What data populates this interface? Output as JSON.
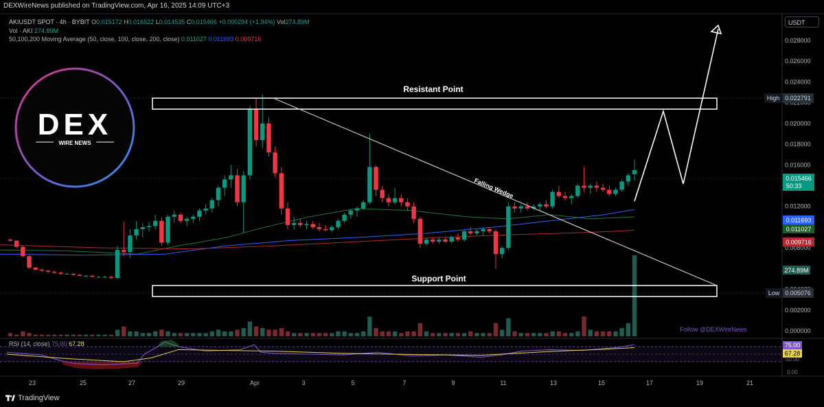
{
  "header": {
    "publisher": "DEXWireNews published on TradingView.com, Apr 16, 2025 14:09 UTC+3"
  },
  "legend": {
    "symbol": "AKIUSDT SPOT · 4h · BYBIT",
    "o_label": "O",
    "o": "0.015172",
    "h_label": "H",
    "h": "0.016522",
    "l_label": "L",
    "l": "0.014535",
    "c_label": "C",
    "c": "0.015466",
    "change": "+0.000294 (+1.94%)",
    "vol_label": "Vol",
    "vol": "274.89M",
    "vol_line_label": "Vol · AKI",
    "vol_line_value": "274.89M",
    "ma_label": "50,100,200 Moving Average (50, close, 100, close, 200, close)",
    "ma50": "0.011027",
    "ma100": "0.011693",
    "ma200": "0.009716"
  },
  "currency_button": "USDT",
  "logo": {
    "text": "DEX",
    "subtitle": "WIRE NEWS"
  },
  "annotations": {
    "resistant": "Resistant Point",
    "support": "Support Point",
    "wedge": "Falling Wedge",
    "follow": "Follow @DEXWireNews"
  },
  "price_tags": {
    "high_label": "High",
    "high": "0.022791",
    "last": "0.015466",
    "countdown": "50:33",
    "ma100": "0.011693",
    "ma50": "0.011027",
    "ma200": "0.009716",
    "volume": "274.89M",
    "low_label": "Low",
    "low": "0.005076"
  },
  "rsi": {
    "label": "RSI (14, close)",
    "rsi_value": "75.00",
    "ma_value": "67.28",
    "tag_rsi": "75.00",
    "tag_ma": "67.28",
    "tag_50": "50.00",
    "tag_0": "0.00"
  },
  "footer": {
    "brand": "TradingView"
  },
  "colors": {
    "up": "#089981",
    "down": "#f23645",
    "ma50": "#1f7a3a",
    "ma100": "#2962ff",
    "ma200": "#b22833",
    "rsi": "#7e57c2",
    "rsi_ma": "#e8d44d",
    "vol_up": "#1f5c52",
    "vol_down": "#7a2a2e"
  },
  "chart_data": {
    "type": "candlestick",
    "symbol": "AKIUSDT",
    "timeframe": "4h",
    "y_ticks": [
      "0.028000",
      "0.026000",
      "0.024000",
      "0.022000",
      "0.020000",
      "0.018000",
      "0.016000",
      "0.014000",
      "0.012000",
      "0.010000",
      "0.008000",
      "0.006000",
      "0.004000",
      "0.002000",
      "0.000000"
    ],
    "x_ticks": [
      "23",
      "25",
      "27",
      "29",
      "Apr",
      "3",
      "5",
      "7",
      "9",
      "11",
      "13",
      "15",
      "17",
      "19",
      "21"
    ],
    "ylim": [
      0.0,
      0.0295
    ],
    "candles": [
      [
        0.0088,
        0.0089,
        0.0086,
        0.0087
      ],
      [
        0.0087,
        0.0087,
        0.008,
        0.0081
      ],
      [
        0.0081,
        0.0082,
        0.0071,
        0.0072
      ],
      [
        0.0072,
        0.0073,
        0.006,
        0.0061
      ],
      [
        0.0061,
        0.0062,
        0.0058,
        0.0059
      ],
      [
        0.0059,
        0.006,
        0.0057,
        0.0058
      ],
      [
        0.0058,
        0.0059,
        0.0056,
        0.0057
      ],
      [
        0.0057,
        0.0058,
        0.0055,
        0.0056
      ],
      [
        0.0056,
        0.0057,
        0.0054,
        0.0055
      ],
      [
        0.0055,
        0.0056,
        0.0054,
        0.0055
      ],
      [
        0.0055,
        0.0056,
        0.0053,
        0.0054
      ],
      [
        0.0054,
        0.0055,
        0.0053,
        0.0053
      ],
      [
        0.0053,
        0.0054,
        0.0052,
        0.0053
      ],
      [
        0.0053,
        0.0054,
        0.0052,
        0.0052
      ],
      [
        0.0052,
        0.0053,
        0.0051,
        0.0052
      ],
      [
        0.0052,
        0.0053,
        0.0051,
        0.0052
      ],
      [
        0.0052,
        0.0053,
        0.005,
        0.0051
      ],
      [
        0.0051,
        0.0082,
        0.005,
        0.0078
      ],
      [
        0.0078,
        0.0105,
        0.0072,
        0.0076
      ],
      [
        0.0076,
        0.0098,
        0.007,
        0.0092
      ],
      [
        0.0092,
        0.0106,
        0.0088,
        0.0098
      ],
      [
        0.0098,
        0.0104,
        0.009,
        0.01
      ],
      [
        0.01,
        0.0105,
        0.0096,
        0.0101
      ],
      [
        0.0101,
        0.0112,
        0.0098,
        0.0106
      ],
      [
        0.0106,
        0.011,
        0.0082,
        0.0085
      ],
      [
        0.0085,
        0.0112,
        0.0083,
        0.011
      ],
      [
        0.011,
        0.0116,
        0.0104,
        0.0112
      ],
      [
        0.0112,
        0.0114,
        0.0104,
        0.0106
      ],
      [
        0.0106,
        0.011,
        0.0101,
        0.0108
      ],
      [
        0.0108,
        0.0112,
        0.0104,
        0.011
      ],
      [
        0.011,
        0.0118,
        0.0106,
        0.0116
      ],
      [
        0.0116,
        0.0122,
        0.0112,
        0.0118
      ],
      [
        0.0118,
        0.0128,
        0.0114,
        0.0126
      ],
      [
        0.0126,
        0.014,
        0.012,
        0.0138
      ],
      [
        0.0138,
        0.015,
        0.013,
        0.0146
      ],
      [
        0.0146,
        0.016,
        0.0138,
        0.015
      ],
      [
        0.015,
        0.0156,
        0.012,
        0.0124
      ],
      [
        0.0124,
        0.0154,
        0.0094,
        0.015
      ],
      [
        0.015,
        0.0217,
        0.0146,
        0.0214
      ],
      [
        0.0214,
        0.0224,
        0.0178,
        0.0184
      ],
      [
        0.0184,
        0.0228,
        0.0176,
        0.02
      ],
      [
        0.02,
        0.0206,
        0.0168,
        0.0172
      ],
      [
        0.0172,
        0.0178,
        0.0148,
        0.0152
      ],
      [
        0.0152,
        0.0158,
        0.0112,
        0.0118
      ],
      [
        0.0118,
        0.0124,
        0.0098,
        0.0102
      ],
      [
        0.0102,
        0.011,
        0.0098,
        0.0104
      ],
      [
        0.0104,
        0.0108,
        0.01,
        0.0102
      ],
      [
        0.0102,
        0.0106,
        0.0098,
        0.0103
      ],
      [
        0.0103,
        0.0106,
        0.0098,
        0.01
      ],
      [
        0.01,
        0.0104,
        0.0096,
        0.0098
      ],
      [
        0.0098,
        0.0102,
        0.0096,
        0.0097
      ],
      [
        0.0097,
        0.0102,
        0.0095,
        0.01
      ],
      [
        0.01,
        0.0108,
        0.0098,
        0.0106
      ],
      [
        0.0106,
        0.0114,
        0.0104,
        0.0112
      ],
      [
        0.0112,
        0.0118,
        0.0108,
        0.0116
      ],
      [
        0.0116,
        0.012,
        0.011,
        0.0118
      ],
      [
        0.0118,
        0.0126,
        0.0116,
        0.0124
      ],
      [
        0.0124,
        0.019,
        0.0122,
        0.0158
      ],
      [
        0.0158,
        0.016,
        0.013,
        0.0136
      ],
      [
        0.0136,
        0.014,
        0.0124,
        0.0128
      ],
      [
        0.0128,
        0.0132,
        0.012,
        0.0124
      ],
      [
        0.0124,
        0.0138,
        0.0122,
        0.0128
      ],
      [
        0.0128,
        0.0132,
        0.012,
        0.0124
      ],
      [
        0.0124,
        0.0128,
        0.0116,
        0.012
      ],
      [
        0.012,
        0.0124,
        0.0104,
        0.0108
      ],
      [
        0.0108,
        0.011,
        0.008,
        0.0084
      ],
      [
        0.0084,
        0.009,
        0.0082,
        0.0088
      ],
      [
        0.0088,
        0.009,
        0.0084,
        0.0086
      ],
      [
        0.0086,
        0.009,
        0.0084,
        0.0088
      ],
      [
        0.0088,
        0.009,
        0.0085,
        0.0086
      ],
      [
        0.0086,
        0.0092,
        0.0084,
        0.009
      ],
      [
        0.009,
        0.0094,
        0.0086,
        0.0088
      ],
      [
        0.0088,
        0.0098,
        0.0086,
        0.0096
      ],
      [
        0.0096,
        0.01,
        0.0092,
        0.0094
      ],
      [
        0.0094,
        0.0098,
        0.0092,
        0.0096
      ],
      [
        0.0096,
        0.01,
        0.0092,
        0.0098
      ],
      [
        0.0098,
        0.01,
        0.0094,
        0.0096
      ],
      [
        0.0096,
        0.0098,
        0.006,
        0.0074
      ],
      [
        0.0074,
        0.0082,
        0.007,
        0.008
      ],
      [
        0.008,
        0.0124,
        0.0078,
        0.012
      ],
      [
        0.012,
        0.0124,
        0.0114,
        0.0118
      ],
      [
        0.0118,
        0.0122,
        0.0114,
        0.012
      ],
      [
        0.012,
        0.0124,
        0.0116,
        0.0118
      ],
      [
        0.0118,
        0.0122,
        0.0116,
        0.012
      ],
      [
        0.012,
        0.0124,
        0.0116,
        0.0122
      ],
      [
        0.0122,
        0.0126,
        0.0118,
        0.012
      ],
      [
        0.012,
        0.0136,
        0.0118,
        0.0134
      ],
      [
        0.0134,
        0.014,
        0.0128,
        0.013
      ],
      [
        0.013,
        0.0134,
        0.0126,
        0.0128
      ],
      [
        0.0128,
        0.0132,
        0.0122,
        0.013
      ],
      [
        0.013,
        0.0142,
        0.0128,
        0.014
      ],
      [
        0.014,
        0.0158,
        0.0134,
        0.0138
      ],
      [
        0.0138,
        0.0142,
        0.0132,
        0.014
      ],
      [
        0.014,
        0.0144,
        0.0134,
        0.0138
      ],
      [
        0.0138,
        0.0142,
        0.0134,
        0.0136
      ],
      [
        0.0136,
        0.014,
        0.013,
        0.0132
      ],
      [
        0.0132,
        0.0138,
        0.013,
        0.0136
      ],
      [
        0.0136,
        0.0146,
        0.0134,
        0.0144
      ],
      [
        0.0144,
        0.0152,
        0.014,
        0.015
      ],
      [
        0.0151,
        0.0165,
        0.0145,
        0.0155
      ]
    ],
    "volumes_M": [
      2,
      1,
      3,
      2,
      1,
      1,
      1,
      1,
      1,
      1,
      1,
      1,
      1,
      1,
      1,
      1,
      1,
      4,
      6,
      3,
      3,
      2,
      2,
      3,
      4,
      3,
      2,
      2,
      2,
      2,
      2,
      2,
      3,
      4,
      3,
      3,
      4,
      5,
      9,
      6,
      5,
      4,
      4,
      5,
      3,
      2,
      2,
      2,
      2,
      2,
      2,
      2,
      3,
      3,
      2,
      2,
      3,
      12,
      5,
      3,
      3,
      3,
      2,
      3,
      3,
      8,
      3,
      2,
      2,
      2,
      2,
      2,
      2,
      3,
      2,
      2,
      2,
      8,
      4,
      11,
      3,
      2,
      2,
      2,
      2,
      2,
      3,
      3,
      2,
      2,
      3,
      12,
      4,
      3,
      3,
      3,
      3,
      5,
      8,
      270
    ],
    "series": [
      {
        "name": "50",
        "values_note": "MA50",
        "last": 0.011027
      },
      {
        "name": "100",
        "values_note": "MA100",
        "last": 0.011693
      },
      {
        "name": "200",
        "values_note": "MA200",
        "last": 0.009716
      }
    ],
    "rsi": {
      "last": 75.0,
      "ma_last": 67.28,
      "levels": [
        70,
        50,
        30
      ]
    },
    "levels": {
      "high": 0.022791,
      "low": 0.005076,
      "last": 0.015466
    }
  }
}
